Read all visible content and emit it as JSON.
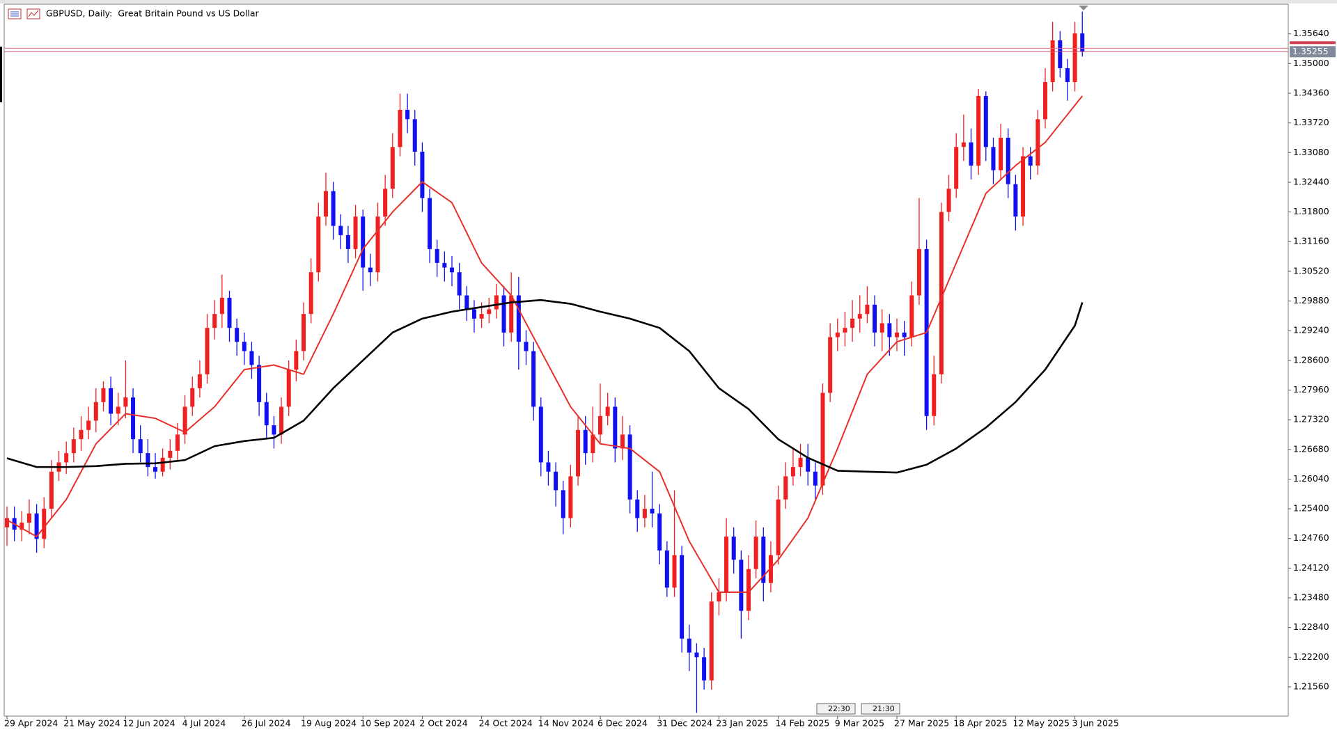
{
  "header": {
    "title": "GBPUSD, Daily:  Great Britain Pound vs US Dollar"
  },
  "chart_data": {
    "type": "candlestick",
    "up_color": "#f02020",
    "down_color": "#1010f0",
    "categories": [
      "29 Apr 2024",
      null,
      null,
      null,
      null,
      null,
      null,
      null,
      "21 May 2024",
      null,
      null,
      null,
      null,
      null,
      null,
      null,
      "12 Jun 2024",
      null,
      null,
      null,
      null,
      null,
      null,
      null,
      "4 Jul 2024",
      null,
      null,
      null,
      null,
      null,
      null,
      null,
      "26 Jul 2024",
      null,
      null,
      null,
      null,
      null,
      null,
      null,
      "19 Aug 2024",
      null,
      null,
      null,
      null,
      null,
      null,
      null,
      "10 Sep 2024",
      null,
      null,
      null,
      null,
      null,
      null,
      null,
      "2 Oct 2024",
      null,
      null,
      null,
      null,
      null,
      null,
      null,
      "24 Oct 2024",
      null,
      null,
      null,
      null,
      null,
      null,
      null,
      "14 Nov 2024",
      null,
      null,
      null,
      null,
      null,
      null,
      null,
      "6 Dec 2024",
      null,
      null,
      null,
      null,
      null,
      null,
      null,
      "31 Dec 2024",
      null,
      null,
      null,
      null,
      null,
      null,
      null,
      "23 Jan 2025",
      null,
      null,
      null,
      null,
      null,
      null,
      null,
      "14 Feb 2025",
      null,
      null,
      null,
      null,
      null,
      null,
      null,
      "9 Mar 2025",
      null,
      null,
      null,
      null,
      null,
      null,
      null,
      "27 Mar 2025",
      null,
      null,
      null,
      null,
      null,
      null,
      null,
      "18 Apr 2025",
      null,
      null,
      null,
      null,
      null,
      null,
      null,
      "12 May 2025",
      null,
      null,
      null,
      null,
      null,
      null,
      null,
      "3 Jun 2025",
      null
    ],
    "open": [
      1.25,
      1.252,
      1.2495,
      1.251,
      1.253,
      1.2475,
      1.254,
      1.262,
      1.264,
      1.266,
      1.269,
      1.271,
      1.273,
      1.277,
      1.28,
      1.2745,
      1.276,
      1.278,
      1.269,
      1.266,
      1.263,
      1.262,
      1.265,
      1.2665,
      1.27,
      1.276,
      1.28,
      1.283,
      1.293,
      1.296,
      1.2995,
      1.293,
      1.29,
      1.288,
      1.285,
      1.277,
      1.272,
      1.27,
      1.276,
      1.284,
      1.288,
      1.296,
      1.305,
      1.317,
      1.3225,
      1.315,
      1.313,
      1.31,
      1.317,
      1.306,
      1.305,
      1.317,
      1.323,
      1.332,
      1.34,
      1.338,
      1.331,
      1.321,
      1.31,
      1.307,
      1.306,
      1.305,
      1.3,
      1.297,
      1.295,
      1.296,
      1.297,
      1.3,
      1.292,
      1.3,
      1.29,
      1.288,
      1.276,
      1.264,
      1.262,
      1.258,
      1.252,
      1.261,
      1.271,
      1.266,
      1.27,
      1.274,
      1.276,
      1.267,
      1.27,
      1.256,
      1.252,
      1.254,
      1.253,
      1.245,
      1.237,
      1.244,
      1.226,
      1.223,
      1.222,
      1.217,
      1.234,
      1.236,
      1.248,
      1.243,
      1.232,
      1.241,
      1.248,
      1.238,
      1.244,
      1.256,
      1.261,
      1.263,
      1.265,
      1.262,
      1.259,
      1.279,
      1.291,
      1.292,
      1.293,
      1.295,
      1.296,
      1.298,
      1.292,
      1.294,
      1.291,
      1.292,
      1.291,
      1.3,
      1.31,
      1.274,
      1.283,
      1.318,
      1.323,
      1.332,
      1.333,
      1.328,
      1.343,
      1.332,
      1.327,
      1.334,
      1.324,
      1.317,
      1.33,
      1.328,
      1.338,
      1.346,
      1.355,
      1.349,
      1.346,
      1.3565
    ],
    "high": [
      1.2545,
      1.2545,
      1.2535,
      1.256,
      1.255,
      1.2565,
      1.2645,
      1.2665,
      1.2685,
      1.2715,
      1.274,
      1.276,
      1.28,
      1.2815,
      1.2825,
      1.279,
      1.286,
      1.28,
      1.272,
      1.269,
      1.266,
      1.267,
      1.269,
      1.2725,
      1.2785,
      1.2825,
      1.286,
      1.296,
      1.299,
      1.3045,
      1.301,
      1.295,
      1.292,
      1.29,
      1.287,
      1.279,
      1.274,
      1.278,
      1.286,
      1.2905,
      1.2985,
      1.308,
      1.32,
      1.3265,
      1.3245,
      1.3175,
      1.315,
      1.3195,
      1.3185,
      1.309,
      1.32,
      1.326,
      1.335,
      1.3435,
      1.3435,
      1.34,
      1.333,
      1.323,
      1.312,
      1.3095,
      1.3085,
      1.307,
      1.302,
      1.299,
      1.2985,
      1.2995,
      1.3025,
      1.302,
      1.305,
      1.304,
      1.2925,
      1.29,
      1.278,
      1.2665,
      1.264,
      1.26,
      1.2635,
      1.274,
      1.274,
      1.276,
      1.281,
      1.279,
      1.278,
      1.274,
      1.272,
      1.258,
      1.257,
      1.262,
      1.255,
      1.247,
      1.258,
      1.246,
      1.229,
      1.225,
      1.224,
      1.236,
      1.239,
      1.252,
      1.25,
      1.245,
      1.244,
      1.2515,
      1.25,
      1.247,
      1.259,
      1.264,
      1.267,
      1.268,
      1.268,
      1.264,
      1.281,
      1.294,
      1.295,
      1.2965,
      1.299,
      1.3,
      1.302,
      1.3,
      1.297,
      1.296,
      1.295,
      1.2945,
      1.303,
      1.321,
      1.312,
      1.287,
      1.32,
      1.326,
      1.335,
      1.339,
      1.336,
      1.3445,
      1.344,
      1.334,
      1.337,
      1.336,
      1.326,
      1.332,
      1.332,
      1.34,
      1.349,
      1.359,
      1.357,
      1.351,
      1.359,
      1.3612
    ],
    "low": [
      1.246,
      1.247,
      1.247,
      1.2485,
      1.2445,
      1.2455,
      1.252,
      1.26,
      1.2615,
      1.264,
      1.2665,
      1.269,
      1.2705,
      1.275,
      1.272,
      1.272,
      1.2735,
      1.266,
      1.264,
      1.261,
      1.2605,
      1.261,
      1.2625,
      1.2645,
      1.268,
      1.274,
      1.278,
      1.281,
      1.2905,
      1.293,
      1.29,
      1.287,
      1.285,
      1.282,
      1.274,
      1.269,
      1.267,
      1.268,
      1.274,
      1.2815,
      1.286,
      1.294,
      1.303,
      1.315,
      1.312,
      1.31,
      1.307,
      1.308,
      1.301,
      1.302,
      1.303,
      1.315,
      1.321,
      1.33,
      1.335,
      1.328,
      1.318,
      1.307,
      1.304,
      1.303,
      1.302,
      1.297,
      1.2945,
      1.292,
      1.293,
      1.294,
      1.295,
      1.289,
      1.29,
      1.284,
      1.285,
      1.273,
      1.261,
      1.259,
      1.2545,
      1.2485,
      1.25,
      1.259,
      1.2635,
      1.264,
      1.268,
      1.272,
      1.264,
      1.2645,
      1.253,
      1.249,
      1.25,
      1.25,
      1.242,
      1.235,
      1.235,
      1.223,
      1.219,
      1.21,
      1.215,
      1.215,
      1.231,
      1.234,
      1.24,
      1.226,
      1.23,
      1.239,
      1.234,
      1.236,
      1.242,
      1.254,
      1.259,
      1.261,
      1.259,
      1.256,
      1.257,
      1.277,
      1.288,
      1.289,
      1.29,
      1.292,
      1.294,
      1.289,
      1.288,
      1.287,
      1.288,
      1.287,
      1.289,
      1.298,
      1.271,
      1.272,
      1.281,
      1.316,
      1.321,
      1.329,
      1.325,
      1.326,
      1.329,
      1.324,
      1.325,
      1.321,
      1.314,
      1.315,
      1.325,
      1.326,
      1.336,
      1.344,
      1.347,
      1.342,
      1.344,
      1.3515
    ],
    "close": [
      1.252,
      1.2495,
      1.251,
      1.253,
      1.2475,
      1.254,
      1.262,
      1.264,
      1.266,
      1.269,
      1.271,
      1.273,
      1.277,
      1.28,
      1.2745,
      1.276,
      1.278,
      1.269,
      1.266,
      1.263,
      1.262,
      1.265,
      1.2665,
      1.27,
      1.276,
      1.28,
      1.283,
      1.293,
      1.296,
      1.2995,
      1.293,
      1.29,
      1.288,
      1.285,
      1.277,
      1.272,
      1.27,
      1.276,
      1.284,
      1.288,
      1.296,
      1.305,
      1.317,
      1.3225,
      1.315,
      1.313,
      1.31,
      1.317,
      1.306,
      1.305,
      1.317,
      1.323,
      1.332,
      1.34,
      1.338,
      1.331,
      1.321,
      1.31,
      1.307,
      1.306,
      1.305,
      1.3,
      1.297,
      1.295,
      1.296,
      1.297,
      1.3,
      1.292,
      1.3,
      1.29,
      1.288,
      1.276,
      1.264,
      1.262,
      1.258,
      1.252,
      1.261,
      1.271,
      1.266,
      1.27,
      1.274,
      1.276,
      1.267,
      1.27,
      1.256,
      1.252,
      1.254,
      1.253,
      1.245,
      1.237,
      1.244,
      1.226,
      1.223,
      1.222,
      1.217,
      1.234,
      1.236,
      1.248,
      1.243,
      1.232,
      1.241,
      1.248,
      1.238,
      1.244,
      1.256,
      1.261,
      1.263,
      1.265,
      1.262,
      1.259,
      1.279,
      1.291,
      1.292,
      1.293,
      1.295,
      1.296,
      1.298,
      1.292,
      1.294,
      1.291,
      1.292,
      1.291,
      1.3,
      1.31,
      1.274,
      1.283,
      1.318,
      1.323,
      1.332,
      1.333,
      1.328,
      1.343,
      1.332,
      1.327,
      1.334,
      1.324,
      1.317,
      1.33,
      1.328,
      1.338,
      1.346,
      1.355,
      1.349,
      1.346,
      1.3565,
      1.35255
    ],
    "series": [
      {
        "color": "#e8302a",
        "x": [
          0,
          4,
          8,
          12,
          16,
          20,
          24,
          28,
          32,
          36,
          40,
          44,
          48,
          52,
          56,
          60,
          64,
          68,
          72,
          76,
          80,
          84,
          88,
          92,
          96,
          100,
          104,
          108,
          112,
          116,
          120,
          124,
          128,
          132,
          136,
          140,
          144,
          145
        ],
        "values": [
          1.2516,
          1.248,
          1.256,
          1.268,
          1.2745,
          1.2735,
          1.2705,
          1.276,
          1.284,
          1.285,
          1.283,
          1.296,
          1.31,
          1.318,
          1.3245,
          1.32,
          1.307,
          1.3,
          1.288,
          1.276,
          1.268,
          1.267,
          1.262,
          1.247,
          1.236,
          1.236,
          1.243,
          1.252,
          1.267,
          1.283,
          1.29,
          1.292,
          1.307,
          1.322,
          1.328,
          1.333,
          1.341,
          1.343
        ]
      },
      {
        "color": "#000000",
        "x": [
          0,
          4,
          8,
          12,
          16,
          20,
          24,
          28,
          32,
          36,
          40,
          44,
          48,
          52,
          56,
          60,
          64,
          68,
          72,
          76,
          80,
          84,
          88,
          92,
          96,
          100,
          104,
          108,
          112,
          116,
          120,
          124,
          128,
          132,
          136,
          140,
          144,
          145
        ],
        "values": [
          1.2649,
          1.263,
          1.263,
          1.2632,
          1.2637,
          1.2638,
          1.2645,
          1.2675,
          1.2686,
          1.2693,
          1.273,
          1.28,
          1.286,
          1.292,
          1.295,
          1.2965,
          1.2975,
          1.2985,
          1.299,
          1.2982,
          1.2965,
          1.295,
          1.293,
          1.288,
          1.28,
          1.2755,
          1.269,
          1.265,
          1.2622,
          1.262,
          1.2618,
          1.2635,
          1.267,
          1.2715,
          1.277,
          1.284,
          1.2935,
          1.2985
        ]
      }
    ],
    "ylim": [
      1.2093,
      1.3628
    ],
    "yticks": [
      {
        "value": 1.3564,
        "label": "1.35640"
      },
      {
        "value": 1.35,
        "label": "1.35000"
      },
      {
        "value": 1.3436,
        "label": "1.34360"
      },
      {
        "value": 1.3372,
        "label": "1.33720"
      },
      {
        "value": 1.3308,
        "label": "1.33080"
      },
      {
        "value": 1.3244,
        "label": "1.32440"
      },
      {
        "value": 1.318,
        "label": "1.31800"
      },
      {
        "value": 1.3116,
        "label": "1.31160"
      },
      {
        "value": 1.3052,
        "label": "1.30520"
      },
      {
        "value": 1.2988,
        "label": "1.29880"
      },
      {
        "value": 1.2924,
        "label": "1.29240"
      },
      {
        "value": 1.286,
        "label": "1.28600"
      },
      {
        "value": 1.2796,
        "label": "1.27960"
      },
      {
        "value": 1.2732,
        "label": "1.27320"
      },
      {
        "value": 1.2668,
        "label": "1.26680"
      },
      {
        "value": 1.2604,
        "label": "1.26040"
      },
      {
        "value": 1.254,
        "label": "1.25400"
      },
      {
        "value": 1.2476,
        "label": "1.24760"
      },
      {
        "value": 1.2412,
        "label": "1.24120"
      },
      {
        "value": 1.2348,
        "label": "1.23480"
      },
      {
        "value": 1.2284,
        "label": "1.22840"
      },
      {
        "value": 1.222,
        "label": "1.22200"
      },
      {
        "value": 1.2156,
        "label": "1.21560"
      }
    ],
    "ask": 1.3533,
    "bid": 1.35255,
    "time_markers": [
      "22:30",
      "21:30"
    ]
  }
}
